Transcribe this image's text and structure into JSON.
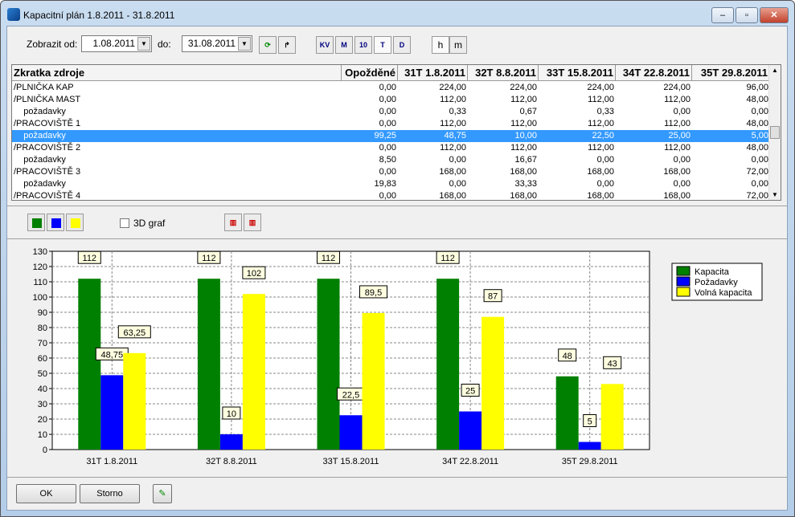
{
  "window": {
    "title": "Kapacitní plán 1.8.2011 - 31.8.2011"
  },
  "toolbar": {
    "from_label": "Zobrazit od:",
    "from_value": "1.08.2011",
    "to_label": "do:",
    "to_value": "31.08.2011",
    "buttons": [
      "KV",
      "M",
      "10",
      "T",
      "D"
    ],
    "unit_h": "h",
    "unit_m": "m"
  },
  "table": {
    "headers": [
      "Zkratka zdroje",
      "Opožděné",
      "31T 1.8.2011",
      "32T 8.8.2011",
      "33T 15.8.2011",
      "34T 22.8.2011",
      "35T 29.8.2011"
    ],
    "rows": [
      [
        "/PLNIČKA KAP",
        "0,00",
        "224,00",
        "224,00",
        "224,00",
        "224,00",
        "96,00"
      ],
      [
        "/PLNIČKA MAST",
        "0,00",
        "112,00",
        "112,00",
        "112,00",
        "112,00",
        "48,00"
      ],
      [
        "    požadavky",
        "0,00",
        "0,33",
        "0,67",
        "0,33",
        "0,00",
        "0,00"
      ],
      [
        "/PRACOVIŠTĚ 1",
        "0,00",
        "112,00",
        "112,00",
        "112,00",
        "112,00",
        "48,00"
      ],
      [
        "    požadavky",
        "99,25",
        "48,75",
        "10,00",
        "22,50",
        "25,00",
        "5,00"
      ],
      [
        "/PRACOVIŠTĚ 2",
        "0,00",
        "112,00",
        "112,00",
        "112,00",
        "112,00",
        "48,00"
      ],
      [
        "    požadavky",
        "8,50",
        "0,00",
        "16,67",
        "0,00",
        "0,00",
        "0,00"
      ],
      [
        "/PRACOVIŠTĚ 3",
        "0,00",
        "168,00",
        "168,00",
        "168,00",
        "168,00",
        "72,00"
      ],
      [
        "    požadavky",
        "19,83",
        "0,00",
        "33,33",
        "0,00",
        "0,00",
        "0,00"
      ],
      [
        "/PRACOVIŠTĚ 4",
        "0,00",
        "168,00",
        "168,00",
        "168,00",
        "168,00",
        "72,00"
      ]
    ],
    "selected_row": 4
  },
  "chart_options": {
    "graph3d_label": "3D graf",
    "graph3d_checked": false,
    "series_colors": [
      "#008000",
      "#0000ff",
      "#ffff00"
    ]
  },
  "chart_data": {
    "type": "bar",
    "categories": [
      "31T 1.8.2011",
      "32T 8.8.2011",
      "33T 15.8.2011",
      "34T 22.8.2011",
      "35T 29.8.2011"
    ],
    "series": [
      {
        "name": "Kapacita",
        "color": "#008000",
        "values": [
          112,
          112,
          112,
          112,
          48
        ],
        "labels": [
          "112",
          "112",
          "112",
          "112",
          "48"
        ]
      },
      {
        "name": "Požadavky",
        "color": "#0000ff",
        "values": [
          48.75,
          10,
          22.5,
          25,
          5
        ],
        "labels": [
          "48,75",
          "10",
          "22,5",
          "25",
          "5"
        ]
      },
      {
        "name": "Volná kapacita",
        "color": "#ffff00",
        "values": [
          63.25,
          102,
          89.5,
          87,
          43
        ],
        "labels": [
          "63,25",
          "102",
          "89,5",
          "87",
          "43"
        ]
      }
    ],
    "ylim": [
      0,
      130
    ],
    "yticks": [
      0,
      10,
      20,
      30,
      40,
      50,
      60,
      70,
      80,
      90,
      100,
      110,
      120,
      130
    ],
    "grid": true,
    "legend": "right"
  },
  "footer": {
    "ok": "OK",
    "cancel": "Storno"
  }
}
